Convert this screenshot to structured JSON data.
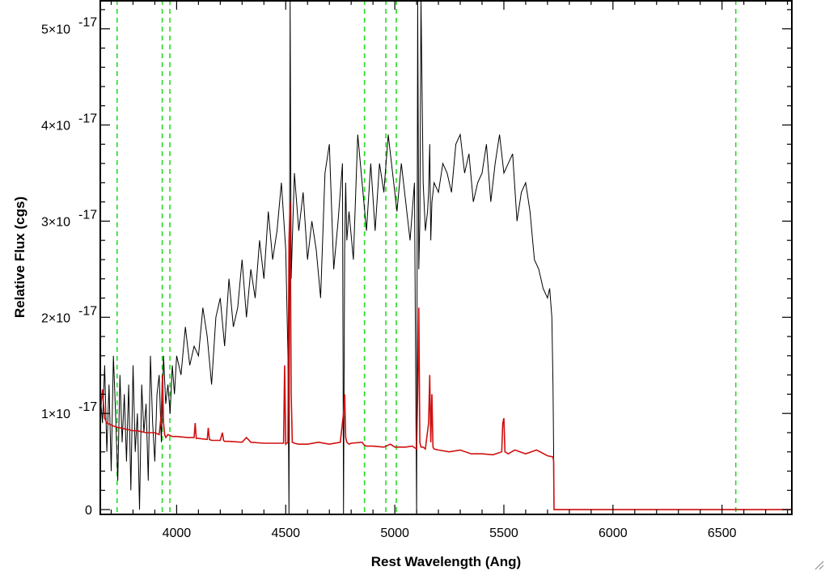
{
  "chart_data": {
    "type": "line",
    "title": "",
    "xlabel": "Rest Wavelength (Ang)",
    "ylabel": "Relative Flux (cgs)",
    "xlim": [
      3650,
      6820
    ],
    "ylim": [
      -0.05,
      5.3
    ],
    "y_unit_scale": "1e-17",
    "x_ticks": [
      4000,
      4500,
      5000,
      5500,
      6000,
      6500
    ],
    "x_tick_labels": [
      "4000",
      "4500",
      "5000",
      "5500",
      "6000",
      "6500"
    ],
    "y_ticks": [
      0,
      1,
      2,
      3,
      4,
      5
    ],
    "y_tick_labels": [
      {
        "mantissa": "0",
        "exponent": ""
      },
      {
        "mantissa": "1×10",
        "exponent": "-17"
      },
      {
        "mantissa": "2×10",
        "exponent": "-17"
      },
      {
        "mantissa": "3×10",
        "exponent": "-17"
      },
      {
        "mantissa": "4×10",
        "exponent": "-17"
      },
      {
        "mantissa": "5×10",
        "exponent": "-17"
      }
    ],
    "reference_lines_x": [
      3727,
      3934,
      3969,
      4861,
      4959,
      5007,
      6563
    ],
    "series": [
      {
        "color": "#000000",
        "x": [
          3650,
          3660,
          3670,
          3680,
          3690,
          3700,
          3710,
          3720,
          3730,
          3740,
          3750,
          3760,
          3770,
          3780,
          3790,
          3800,
          3810,
          3820,
          3830,
          3840,
          3850,
          3860,
          3870,
          3880,
          3890,
          3900,
          3910,
          3920,
          3930,
          3940,
          3950,
          3960,
          3970,
          3980,
          3990,
          4000,
          4020,
          4040,
          4060,
          4080,
          4100,
          4120,
          4140,
          4160,
          4180,
          4200,
          4220,
          4240,
          4260,
          4280,
          4300,
          4320,
          4340,
          4360,
          4380,
          4400,
          4420,
          4440,
          4460,
          4480,
          4500,
          4510,
          4515,
          4520,
          4525,
          4530,
          4540,
          4560,
          4580,
          4600,
          4620,
          4640,
          4660,
          4680,
          4700,
          4720,
          4740,
          4760,
          4765,
          4770,
          4775,
          4780,
          4790,
          4810,
          4830,
          4850,
          4870,
          4890,
          4910,
          4930,
          4950,
          4970,
          4990,
          5010,
          5030,
          5050,
          5070,
          5090,
          5100,
          5105,
          5110,
          5115,
          5120,
          5130,
          5140,
          5150,
          5155,
          5160,
          5165,
          5170,
          5180,
          5200,
          5220,
          5240,
          5260,
          5280,
          5300,
          5320,
          5340,
          5360,
          5380,
          5400,
          5420,
          5440,
          5460,
          5480,
          5500,
          5520,
          5540,
          5560,
          5580,
          5600,
          5620,
          5640,
          5660,
          5680,
          5700,
          5710,
          5720,
          5725,
          5728,
          5730,
          5740,
          6000,
          6500,
          6820
        ],
        "y": [
          1.2,
          0.9,
          1.5,
          0.6,
          1.3,
          0.4,
          1.6,
          1.0,
          0.3,
          1.4,
          0.7,
          1.2,
          0.5,
          1.3,
          0.2,
          1.5,
          0.6,
          1.0,
          0.0,
          1.3,
          0.8,
          1.1,
          0.3,
          1.6,
          0.9,
          0.5,
          1.2,
          1.4,
          0.7,
          1.6,
          1.1,
          1.3,
          1.0,
          1.5,
          1.2,
          1.6,
          1.4,
          1.9,
          1.5,
          1.7,
          1.6,
          2.1,
          1.8,
          1.3,
          2.0,
          2.2,
          1.7,
          2.4,
          1.9,
          2.1,
          2.6,
          2.0,
          2.5,
          2.2,
          2.8,
          2.4,
          3.1,
          2.6,
          2.9,
          3.4,
          2.7,
          1.6,
          -0.05,
          5.3,
          2.4,
          2.8,
          3.5,
          2.9,
          3.3,
          2.6,
          3.0,
          2.7,
          2.2,
          3.5,
          3.8,
          2.5,
          3.0,
          3.6,
          -0.05,
          2.7,
          3.4,
          2.8,
          3.1,
          2.6,
          3.9,
          3.4,
          2.9,
          3.6,
          2.9,
          3.6,
          3.3,
          3.9,
          3.5,
          3.1,
          3.6,
          3.2,
          2.8,
          3.4,
          -0.05,
          5.3,
          2.5,
          3.0,
          5.3,
          3.4,
          2.9,
          3.1,
          3.3,
          3.8,
          2.8,
          3.2,
          3.4,
          3.3,
          3.6,
          3.5,
          3.3,
          3.8,
          3.9,
          3.5,
          3.7,
          3.2,
          3.4,
          3.5,
          3.8,
          3.2,
          3.6,
          3.9,
          3.5,
          3.6,
          3.7,
          3.0,
          3.3,
          3.4,
          3.1,
          2.6,
          2.5,
          2.3,
          2.2,
          2.3,
          2.0,
          1.3,
          0.6,
          0,
          0,
          0,
          0,
          0
        ]
      },
      {
        "color": "#d01010",
        "x": [
          3650,
          3660,
          3670,
          3680,
          3700,
          3720,
          3740,
          3760,
          3780,
          3800,
          3820,
          3840,
          3860,
          3880,
          3900,
          3920,
          3930,
          3935,
          3940,
          3945,
          3950,
          3960,
          3970,
          3980,
          4000,
          4050,
          4080,
          4085,
          4090,
          4100,
          4140,
          4145,
          4150,
          4160,
          4200,
          4210,
          4215,
          4220,
          4240,
          4300,
          4320,
          4340,
          4400,
          4460,
          4490,
          4495,
          4500,
          4510,
          4515,
          4520,
          4525,
          4530,
          4540,
          4560,
          4600,
          4650,
          4700,
          4750,
          4765,
          4770,
          4775,
          4780,
          4790,
          4800,
          4850,
          4860,
          4870,
          4900,
          4950,
          4980,
          5000,
          5050,
          5080,
          5100,
          5105,
          5110,
          5115,
          5120,
          5130,
          5140,
          5155,
          5160,
          5165,
          5170,
          5175,
          5180,
          5200,
          5250,
          5300,
          5350,
          5400,
          5450,
          5490,
          5495,
          5500,
          5505,
          5520,
          5550,
          5600,
          5650,
          5700,
          5720,
          5725,
          5728,
          5730,
          5740,
          6000,
          6500,
          6820
        ],
        "y": [
          1.0,
          1.25,
          0.95,
          0.9,
          0.88,
          0.86,
          0.85,
          0.84,
          0.83,
          0.82,
          0.82,
          0.81,
          0.8,
          0.8,
          0.8,
          0.78,
          1.0,
          1.4,
          0.9,
          0.78,
          0.75,
          0.78,
          0.77,
          0.76,
          0.76,
          0.75,
          0.75,
          0.9,
          0.74,
          0.74,
          0.73,
          0.85,
          0.73,
          0.72,
          0.72,
          0.8,
          0.72,
          0.71,
          0.71,
          0.7,
          0.75,
          0.7,
          0.69,
          0.69,
          0.69,
          1.5,
          0.68,
          0.7,
          2.8,
          3.2,
          1.2,
          0.7,
          0.69,
          0.68,
          0.68,
          0.7,
          0.68,
          0.7,
          1.0,
          1.2,
          0.75,
          0.7,
          0.68,
          0.69,
          0.7,
          0.67,
          0.66,
          0.66,
          0.65,
          0.68,
          0.65,
          0.65,
          0.66,
          0.63,
          1.2,
          2.1,
          0.7,
          0.65,
          0.65,
          0.63,
          0.9,
          1.4,
          0.7,
          1.2,
          0.65,
          0.63,
          0.62,
          0.6,
          0.62,
          0.58,
          0.58,
          0.57,
          0.6,
          0.9,
          0.95,
          0.6,
          0.58,
          0.62,
          0.58,
          0.62,
          0.56,
          0.55,
          0.55,
          0.5,
          0,
          0,
          0,
          0,
          0
        ]
      }
    ]
  }
}
